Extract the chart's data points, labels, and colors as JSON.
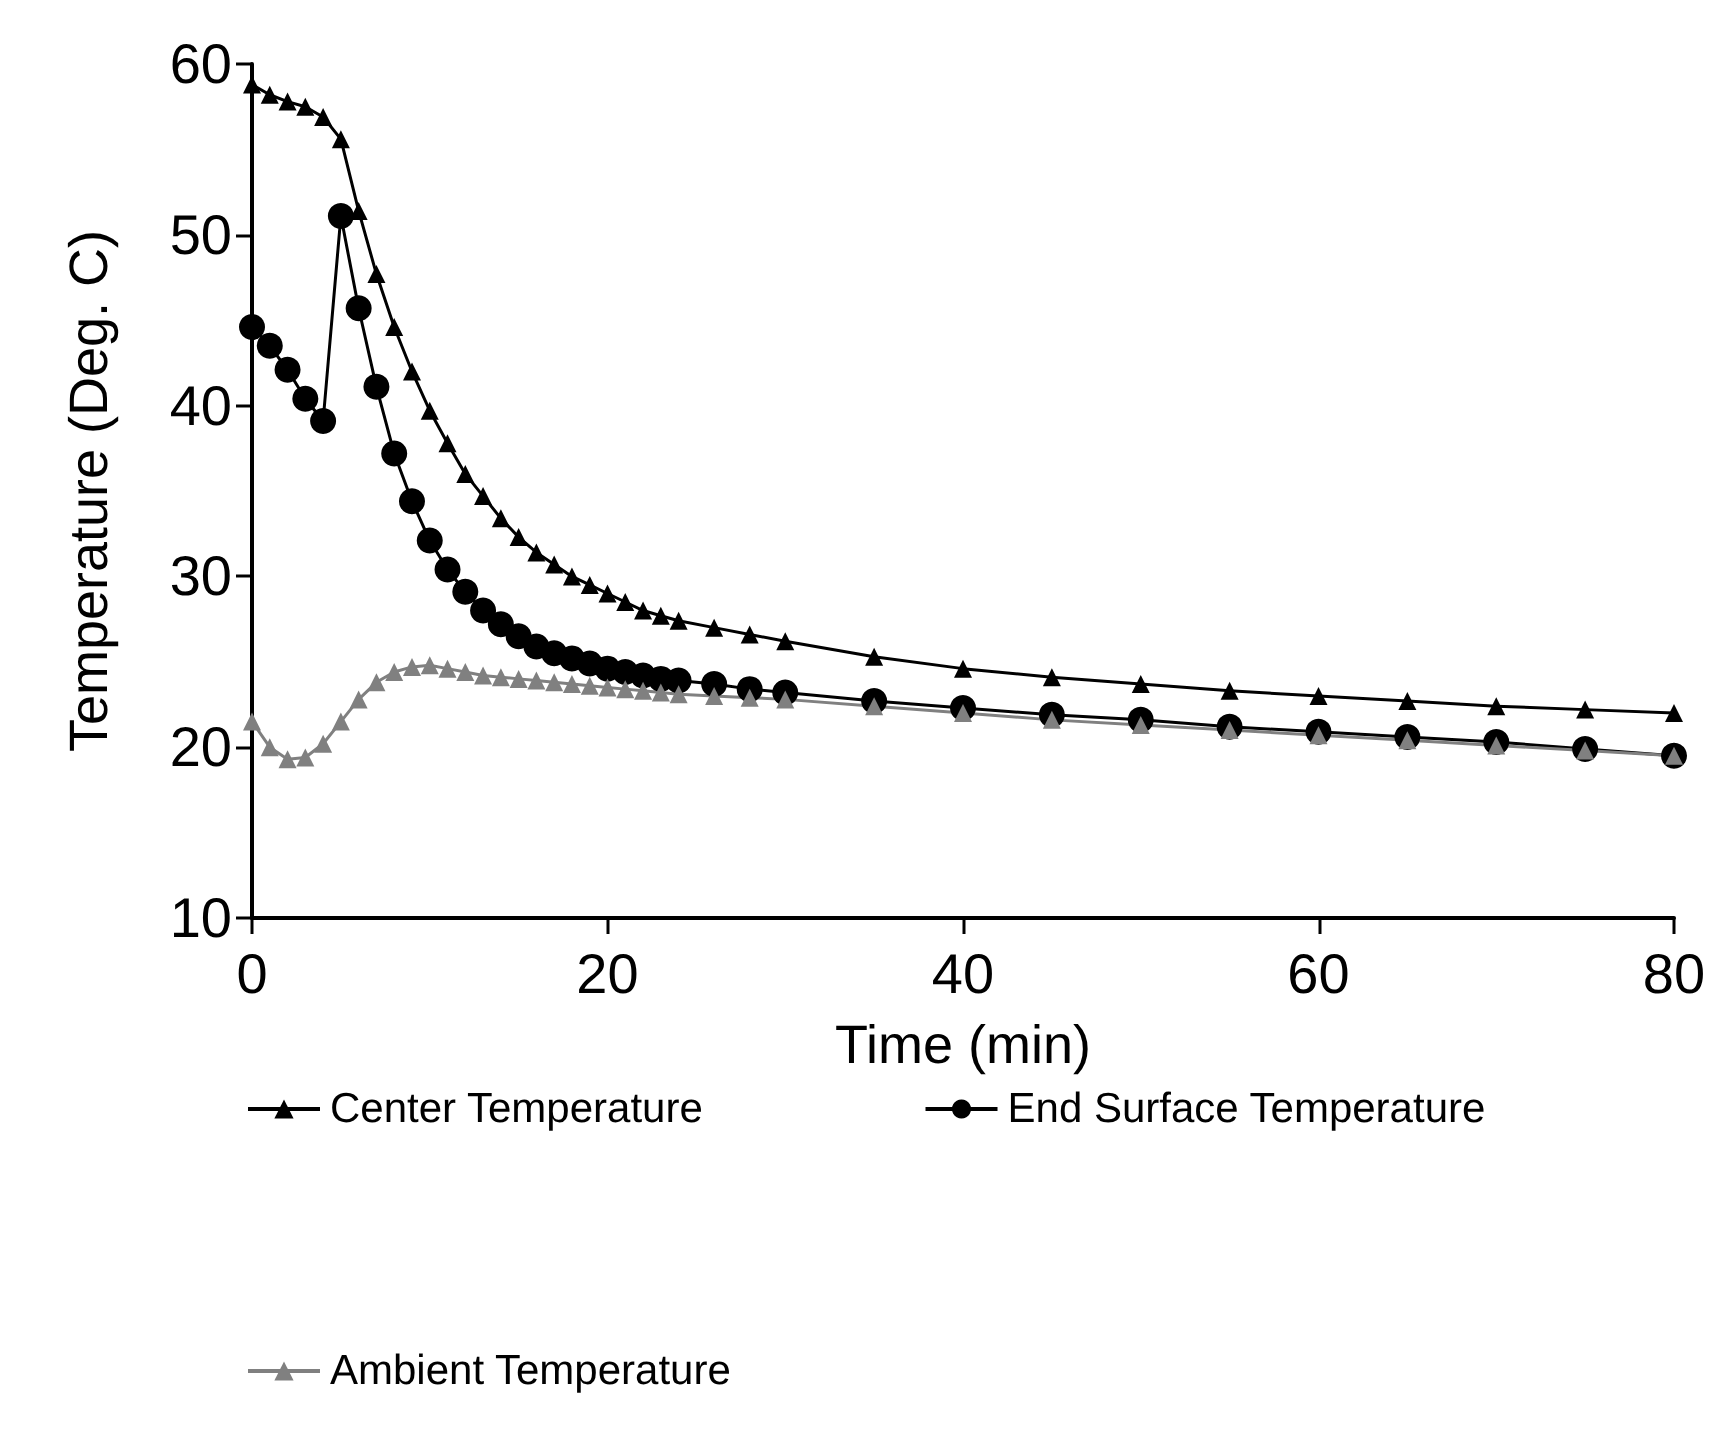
{
  "chart_data": {
    "type": "line",
    "xlabel": "Time (min)",
    "ylabel": "Temperature (Deg. C)",
    "x": [
      0,
      1,
      2,
      3,
      4,
      5,
      6,
      7,
      8,
      9,
      10,
      11,
      12,
      13,
      14,
      15,
      16,
      17,
      18,
      19,
      20,
      21,
      22,
      23,
      24,
      26,
      28,
      30,
      35,
      40,
      45,
      50,
      55,
      60,
      65,
      70,
      75,
      80
    ],
    "series": [
      {
        "name": "Center Temperature",
        "color": "#000000",
        "marker": "triangle",
        "values": [
          58.8,
          58.2,
          57.8,
          57.5,
          56.9,
          55.6,
          51.4,
          47.7,
          44.6,
          42.0,
          39.7,
          37.8,
          36.0,
          34.7,
          33.4,
          32.3,
          31.4,
          30.7,
          30.0,
          29.5,
          29.0,
          28.5,
          28.0,
          27.7,
          27.4,
          27.0,
          26.6,
          26.2,
          25.3,
          24.6,
          24.1,
          23.7,
          23.3,
          23.0,
          22.7,
          22.4,
          22.2,
          22.0
        ]
      },
      {
        "name": "End Surface Temperature",
        "color": "#000000",
        "marker": "circle",
        "values": [
          44.6,
          43.5,
          42.1,
          40.4,
          39.1,
          51.1,
          45.7,
          41.1,
          37.2,
          34.4,
          32.1,
          30.4,
          29.1,
          28.0,
          27.2,
          26.5,
          25.9,
          25.5,
          25.2,
          24.9,
          24.6,
          24.4,
          24.2,
          24.0,
          23.9,
          23.7,
          23.4,
          23.2,
          22.7,
          22.3,
          21.9,
          21.6,
          21.2,
          20.9,
          20.6,
          20.3,
          19.9,
          19.5
        ]
      },
      {
        "name": "Ambient Temperature",
        "color": "#808080",
        "marker": "triangle",
        "values": [
          21.5,
          20.0,
          19.3,
          19.4,
          20.2,
          21.5,
          22.8,
          23.8,
          24.4,
          24.7,
          24.8,
          24.6,
          24.4,
          24.2,
          24.1,
          24.0,
          23.9,
          23.8,
          23.7,
          23.6,
          23.5,
          23.4,
          23.3,
          23.2,
          23.1,
          23.0,
          22.9,
          22.8,
          22.4,
          22.0,
          21.6,
          21.3,
          21.0,
          20.7,
          20.4,
          20.1,
          19.8,
          19.5
        ]
      }
    ],
    "xlim": [
      0,
      80
    ],
    "xticks": [
      0,
      20,
      40,
      60,
      80
    ],
    "ylim": [
      10,
      60
    ],
    "yticks": [
      10,
      20,
      30,
      40,
      50,
      60
    ],
    "grid": false,
    "legend": "bottom",
    "line_style": "solid"
  }
}
